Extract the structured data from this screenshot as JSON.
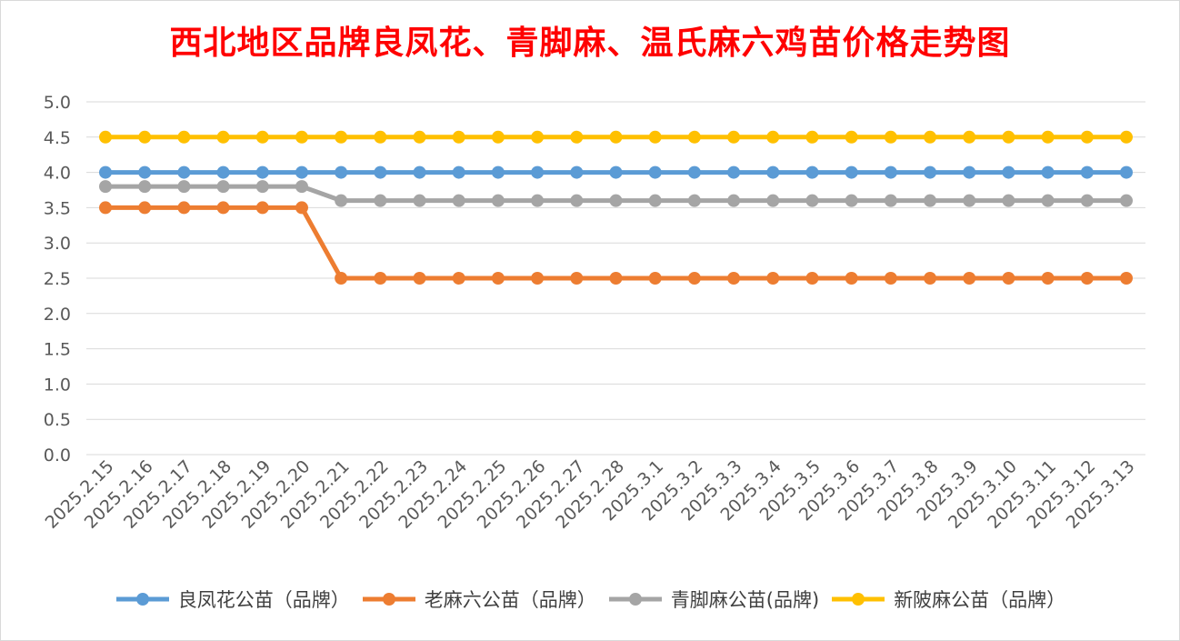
{
  "chart_data": {
    "type": "line",
    "title": "西北地区品牌良凤花、青脚麻、温氏麻六鸡苗价格走势图",
    "xlabel": "",
    "ylabel": "",
    "ylim": [
      0,
      5
    ],
    "yticks": [
      "0.0",
      "0.5",
      "1.0",
      "1.5",
      "2.0",
      "2.5",
      "3.0",
      "3.5",
      "4.0",
      "4.5",
      "5.0"
    ],
    "grid": true,
    "legend_position": "bottom",
    "categories": [
      "2025.2.15",
      "2025.2.16",
      "2025.2.17",
      "2025.2.18",
      "2025.2.19",
      "2025.2.20",
      "2025.2.21",
      "2025.2.22",
      "2025.2.23",
      "2025.2.24",
      "2025.2.25",
      "2025.2.26",
      "2025.2.27",
      "2025.2.28",
      "2025.3.1",
      "2025.3.2",
      "2025.3.3",
      "2025.3.4",
      "2025.3.5",
      "2025.3.6",
      "2025.3.7",
      "2025.3.8",
      "2025.3.9",
      "2025.3.10",
      "2025.3.11",
      "2025.3.12",
      "2025.3.13"
    ],
    "series": [
      {
        "name": "良凤花公苗（品牌）",
        "color": "#5b9bd5",
        "values": [
          4.0,
          4.0,
          4.0,
          4.0,
          4.0,
          4.0,
          4.0,
          4.0,
          4.0,
          4.0,
          4.0,
          4.0,
          4.0,
          4.0,
          4.0,
          4.0,
          4.0,
          4.0,
          4.0,
          4.0,
          4.0,
          4.0,
          4.0,
          4.0,
          4.0,
          4.0,
          4.0
        ]
      },
      {
        "name": "老麻六公苗（品牌）",
        "color": "#ed7d31",
        "values": [
          3.5,
          3.5,
          3.5,
          3.5,
          3.5,
          3.5,
          2.5,
          2.5,
          2.5,
          2.5,
          2.5,
          2.5,
          2.5,
          2.5,
          2.5,
          2.5,
          2.5,
          2.5,
          2.5,
          2.5,
          2.5,
          2.5,
          2.5,
          2.5,
          2.5,
          2.5,
          2.5
        ]
      },
      {
        "name": "青脚麻公苗(品牌)",
        "color": "#a5a5a5",
        "values": [
          3.8,
          3.8,
          3.8,
          3.8,
          3.8,
          3.8,
          3.6,
          3.6,
          3.6,
          3.6,
          3.6,
          3.6,
          3.6,
          3.6,
          3.6,
          3.6,
          3.6,
          3.6,
          3.6,
          3.6,
          3.6,
          3.6,
          3.6,
          3.6,
          3.6,
          3.6,
          3.6
        ]
      },
      {
        "name": "新陂麻公苗（品牌）",
        "color": "#ffc000",
        "values": [
          4.5,
          4.5,
          4.5,
          4.5,
          4.5,
          4.5,
          4.5,
          4.5,
          4.5,
          4.5,
          4.5,
          4.5,
          4.5,
          4.5,
          4.5,
          4.5,
          4.5,
          4.5,
          4.5,
          4.5,
          4.5,
          4.5,
          4.5,
          4.5,
          4.5,
          4.5,
          4.5
        ]
      }
    ]
  }
}
